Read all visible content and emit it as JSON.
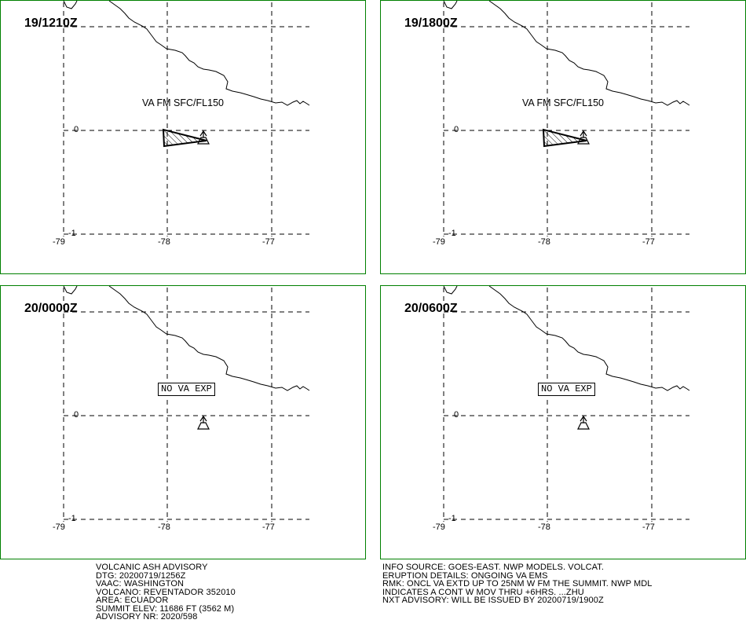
{
  "panels": [
    {
      "time": "19/1210Z",
      "label": "VA FM SFC/FL150",
      "no_va": ""
    },
    {
      "time": "19/1800Z",
      "label": "VA FM SFC/FL150",
      "no_va": ""
    },
    {
      "time": "20/0000Z",
      "label": "",
      "no_va": "NO VA EXP"
    },
    {
      "time": "20/0600Z",
      "label": "",
      "no_va": "NO VA EXP"
    }
  ],
  "axes": {
    "lon_ticks": [
      "-79",
      "-78",
      "-77"
    ],
    "lat_ticks": [
      "0",
      "-1"
    ]
  },
  "advisory_left": [
    "VOLCANIC ASH ADVISORY",
    "DTG: 20200719/1256Z",
    "VAAC: WASHINGTON",
    "VOLCANO: REVENTADOR 352010",
    "AREA: ECUADOR",
    "SUMMIT ELEV: 11686 FT (3562 M)",
    "ADVISORY NR: 2020/598"
  ],
  "advisory_right": [
    "INFO SOURCE: GOES-EAST. NWP MODELS. VOLCAT.",
    "ERUPTION DETAILS: ONGOING VA EMS",
    "RMK: ONCL VA EXTD UP TO 25NM W FM THE SUMMIT. NWP MDL",
    "INDICATES A CONT W MOV THRU +6HRS. ...ZHU",
    "NXT ADVISORY: WILL BE ISSUED BY 20200719/1900Z"
  ],
  "colors": {
    "panel_border": "#008000",
    "lines": "#000000"
  },
  "icons": {
    "volcano": "volcano-icon",
    "ash_area": "hatched-polygon"
  }
}
